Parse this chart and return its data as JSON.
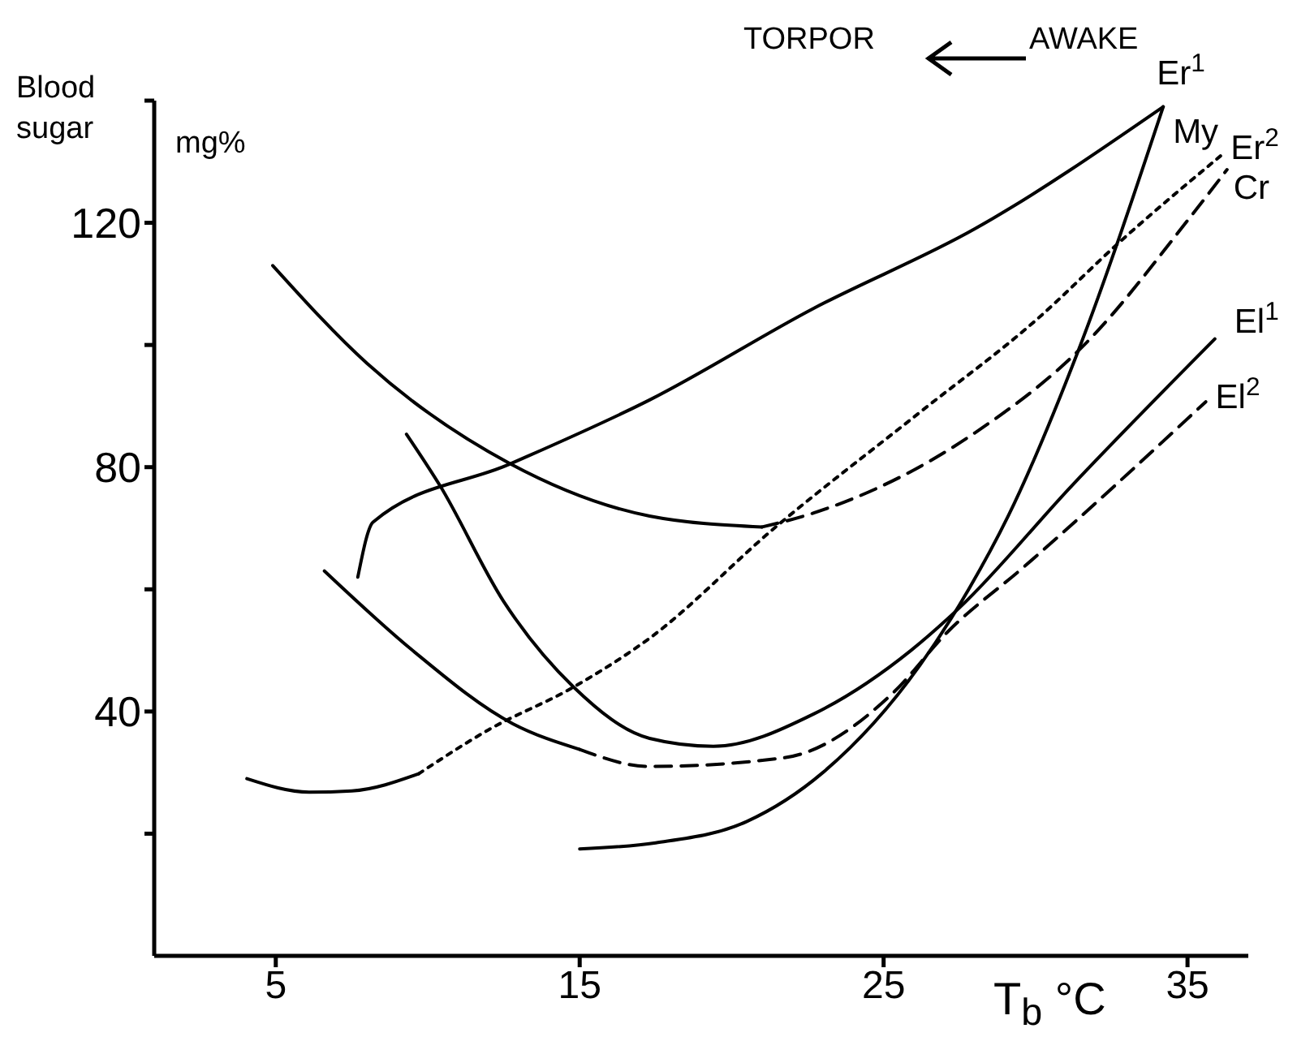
{
  "chart_data": {
    "type": "line",
    "ylabel": "Blood sugar",
    "xlabel": "T$_{b}$ °C",
    "annotations": [
      "mg%",
      "TORPOR",
      "AWAKE"
    ],
    "xlim": [
      1,
      37
    ],
    "xticks": [
      5,
      15,
      25,
      35
    ],
    "ylim": [
      0,
      140
    ],
    "yticks": [
      {
        "value": 20,
        "label": null
      },
      40,
      {
        "value": 60,
        "label": null
      },
      80,
      {
        "value": 100,
        "label": null
      },
      120,
      {
        "value": 140,
        "label": null
      }
    ],
    "grid": false,
    "legend": false,
    "marker": "none",
    "series": [
      {
        "name": "Er$^{1}$",
        "color": "#000000",
        "line_style": "solid",
        "x": [
          7.7,
          8.2,
          12.7,
          17.3,
          22.7,
          28,
          34.2
        ],
        "values": [
          62,
          71,
          80.5,
          91,
          106,
          119,
          139
        ]
      },
      {
        "name": "My",
        "color": "#000000",
        "line_style": "solid",
        "x": [
          15,
          17.5,
          20.5,
          23,
          26.2,
          27.8,
          29.1,
          31.4,
          34.2
        ],
        "values": [
          17.5,
          18.5,
          22,
          30,
          47.6,
          60,
          72,
          99,
          139
        ]
      },
      {
        "color": "#000000",
        "line_style": "solid",
        "x": [
          4.05,
          6.1,
          7.5,
          9.7
        ],
        "values": [
          29,
          26.8,
          27,
          29.8
        ]
      },
      {
        "name": "Er$^{2}$",
        "color": "#000000",
        "line_style": "dotted",
        "x": [
          9.7,
          12,
          14.8,
          17.3,
          21.4,
          26.2,
          30,
          32.8,
          36.1
        ],
        "values": [
          29.8,
          37,
          44,
          52,
          70,
          89,
          104,
          117,
          131
        ]
      },
      {
        "color": "#000000",
        "line_style": "solid",
        "x": [
          4.9,
          8,
          12.7,
          17.3,
          21
        ],
        "values": [
          113,
          97,
          80.6,
          72,
          70.2
        ]
      },
      {
        "name": "Cr",
        "color": "#000000",
        "line_style": "dashed",
        "x": [
          21,
          22.7,
          28,
          31.6,
          35.1,
          36.3
        ],
        "values": [
          70.2,
          72.5,
          85.6,
          100,
          121,
          128.7
        ]
      },
      {
        "name": "El$^{1}$",
        "color": "#000000",
        "line_style": "solid",
        "x": [
          9.3,
          10.4,
          12.5,
          14.8,
          17.3,
          19.4,
          22.7,
          25.9,
          27.5,
          31.2,
          35.9
        ],
        "values": [
          85.4,
          77,
          58,
          44,
          35.6,
          34.3,
          39.6,
          50,
          57,
          77,
          101
        ]
      },
      {
        "color": "#000000",
        "line_style": "solid",
        "x": [
          6.6,
          9.5,
          12.8,
          15
        ],
        "values": [
          63,
          50,
          38,
          33.8
        ]
      },
      {
        "name": "El$^{2}$",
        "color": "#000000",
        "line_style": "dashed",
        "x": [
          15,
          17.3,
          21.7,
          25.3,
          27.1,
          29.6,
          35.6
        ],
        "values": [
          33.8,
          31,
          32.4,
          43,
          53,
          63.6,
          90.7
        ]
      }
    ]
  }
}
